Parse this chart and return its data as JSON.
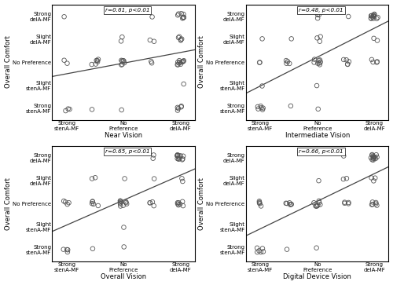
{
  "subplots": [
    {
      "title_text": "r=0.61, p<0.01",
      "xlabel": "Near Vision",
      "r_value": 0.61
    },
    {
      "title_text": "r=0.48, p<0.01",
      "xlabel": "Intermediate Vision",
      "r_value": 0.48
    },
    {
      "title_text": "r=0.65, p<0.01",
      "xlabel": "Overall Vision",
      "r_value": 0.65
    },
    {
      "title_text": "r=0.66, p<0.01",
      "xlabel": "Digital Device Vision",
      "r_value": 0.66
    }
  ],
  "ytick_labels": [
    "Strong\nstenA-MF",
    "Slight\nstenA-MF",
    "No Preference",
    "Slight\ndelA-MF",
    "Strong\ndelA-MF"
  ],
  "xtick_labels": [
    "Strong\nstenA-MF",
    "No\nPreference",
    "Strong\ndelA-MF"
  ],
  "ylabel": "Overall Comfort",
  "background_color": "#ffffff",
  "data_points": {
    "near": {
      "x": [
        1,
        1,
        1,
        1,
        1,
        1,
        2,
        2,
        2,
        2,
        2,
        2,
        2,
        3,
        3,
        3,
        3,
        3,
        3,
        3,
        3,
        3,
        3,
        4,
        4,
        4,
        4,
        4,
        5,
        5,
        5,
        5,
        5,
        5,
        5,
        5,
        5,
        5,
        5,
        5,
        5,
        5,
        5,
        5,
        5,
        5,
        5,
        5,
        5,
        5,
        5,
        5,
        5,
        5,
        5,
        5,
        5,
        5
      ],
      "y": [
        1,
        1,
        1,
        3,
        3,
        5,
        1,
        3,
        3,
        3,
        3,
        3,
        3,
        1,
        3,
        3,
        3,
        3,
        3,
        3,
        3,
        4,
        4,
        3,
        3,
        4,
        4,
        5,
        1,
        1,
        1,
        1,
        1,
        2,
        3,
        3,
        3,
        3,
        3,
        3,
        3,
        3,
        3,
        3,
        3,
        4,
        4,
        4,
        4,
        4,
        5,
        5,
        5,
        5,
        5,
        5,
        5,
        5
      ]
    },
    "intermediate": {
      "x": [
        1,
        1,
        1,
        1,
        1,
        1,
        1,
        1,
        1,
        1,
        2,
        2,
        2,
        2,
        2,
        2,
        3,
        3,
        3,
        3,
        3,
        3,
        3,
        3,
        3,
        3,
        3,
        3,
        3,
        3,
        3,
        3,
        4,
        4,
        4,
        4,
        4,
        4,
        5,
        5,
        5,
        5,
        5,
        5,
        5,
        5,
        5,
        5,
        5,
        5,
        5,
        5,
        5,
        5,
        5,
        5,
        5,
        5
      ],
      "y": [
        1,
        1,
        1,
        1,
        1,
        1,
        2,
        3,
        3,
        4,
        1,
        3,
        3,
        3,
        3,
        4,
        1,
        2,
        3,
        3,
        3,
        3,
        3,
        3,
        3,
        3,
        4,
        4,
        4,
        5,
        5,
        5,
        3,
        3,
        3,
        3,
        3,
        5,
        3,
        3,
        3,
        3,
        4,
        4,
        5,
        5,
        5,
        5,
        5,
        5,
        5,
        5,
        5,
        5,
        5,
        5,
        5,
        5
      ]
    },
    "overall": {
      "x": [
        1,
        1,
        1,
        1,
        1,
        1,
        1,
        1,
        2,
        2,
        2,
        2,
        2,
        2,
        2,
        2,
        3,
        3,
        3,
        3,
        3,
        3,
        3,
        3,
        3,
        3,
        3,
        3,
        3,
        4,
        4,
        4,
        4,
        4,
        4,
        4,
        5,
        5,
        5,
        5,
        5,
        5,
        5,
        5,
        5,
        5,
        5,
        5,
        5,
        5,
        5,
        5,
        5,
        5,
        5,
        5,
        5,
        5
      ],
      "y": [
        1,
        1,
        1,
        1,
        3,
        3,
        3,
        3,
        1,
        3,
        3,
        3,
        3,
        3,
        4,
        4,
        1,
        2,
        3,
        3,
        3,
        3,
        3,
        3,
        3,
        3,
        3,
        3,
        4,
        3,
        3,
        3,
        3,
        4,
        5,
        5,
        3,
        3,
        3,
        3,
        3,
        3,
        3,
        4,
        4,
        5,
        5,
        5,
        5,
        5,
        5,
        5,
        5,
        5,
        5,
        5,
        5,
        5
      ]
    },
    "digital": {
      "x": [
        1,
        1,
        1,
        1,
        1,
        1,
        1,
        1,
        1,
        1,
        1,
        2,
        2,
        2,
        2,
        2,
        2,
        2,
        3,
        3,
        3,
        3,
        3,
        3,
        3,
        3,
        3,
        3,
        4,
        4,
        4,
        4,
        4,
        4,
        4,
        5,
        5,
        5,
        5,
        5,
        5,
        5,
        5,
        5,
        5,
        5,
        5,
        5,
        5,
        5,
        5,
        5,
        5,
        5,
        5,
        5,
        5,
        5
      ],
      "y": [
        1,
        1,
        1,
        1,
        1,
        1,
        3,
        3,
        3,
        3,
        3,
        1,
        3,
        3,
        3,
        3,
        3,
        3,
        1,
        3,
        3,
        3,
        3,
        3,
        3,
        3,
        3,
        4,
        3,
        3,
        3,
        3,
        4,
        4,
        5,
        3,
        3,
        3,
        3,
        3,
        3,
        4,
        4,
        4,
        5,
        5,
        5,
        5,
        5,
        5,
        5,
        5,
        5,
        5,
        5,
        5,
        5,
        5
      ]
    }
  },
  "marker_size": 4,
  "marker_color": "none",
  "marker_edgecolor": "#555555",
  "jitter_strength": 0.12
}
